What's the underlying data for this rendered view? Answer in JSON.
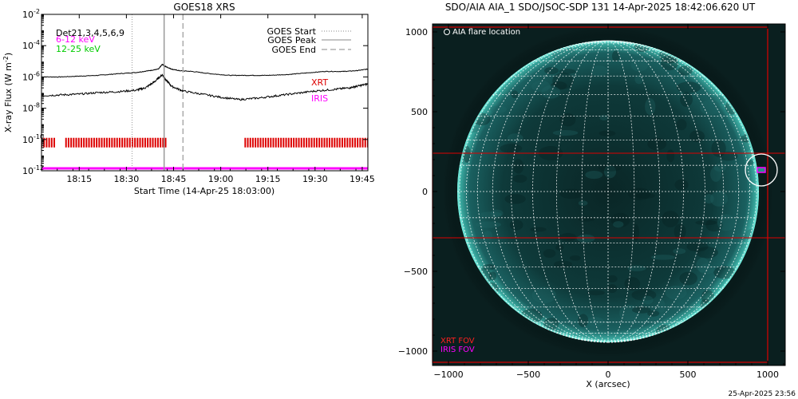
{
  "chart_data": [
    {
      "type": "line",
      "title": "GOES18 XRS",
      "xlabel": "Start Time (14-Apr-25 18:03:00)",
      "ylabel_prefix": "X-ray Flux (W m",
      "ylabel_exp": "-2",
      "ylabel_suffix": ")",
      "y_scale": "log",
      "ylim_exp": [
        -12,
        -2
      ],
      "xlim_hours": [
        18.05,
        19.78
      ],
      "x_ticks": [
        {
          "label": "18:15",
          "h": 18.25
        },
        {
          "label": "18:30",
          "h": 18.5
        },
        {
          "label": "18:45",
          "h": 18.75
        },
        {
          "label": "19:00",
          "h": 19.0
        },
        {
          "label": "19:15",
          "h": 19.25
        },
        {
          "label": "19:30",
          "h": 19.5
        },
        {
          "label": "19:45",
          "h": 19.75
        }
      ],
      "y_ticks": [
        {
          "base": "10",
          "exp": "-2",
          "e": -2
        },
        {
          "base": "10",
          "exp": "-4",
          "e": -4
        },
        {
          "base": "10",
          "exp": "-6",
          "e": -6
        },
        {
          "base": "10",
          "exp": "-8",
          "e": -8
        },
        {
          "base": "10",
          "exp": "-10",
          "e": -10
        },
        {
          "base": "10",
          "exp": "-12",
          "e": -12
        }
      ],
      "legend_left": {
        "det": "Det21,3,4,5,6,9",
        "entries": [
          {
            "label": "6-12 keV",
            "color": "#ff00ff"
          },
          {
            "label": "12-25 keV",
            "color": "#00cc00"
          }
        ]
      },
      "legend_right": [
        {
          "label": "GOES Start",
          "style": "dotted"
        },
        {
          "label": "GOES Peak",
          "style": "solid"
        },
        {
          "label": "GOES End",
          "style": "dashed"
        }
      ],
      "event_lines": {
        "start": 18.53,
        "peak": 18.7,
        "end": 18.8
      },
      "series": [
        {
          "band": "long",
          "color": "#000000",
          "x": [
            18.05,
            18.15,
            18.25,
            18.35,
            18.45,
            18.55,
            18.62,
            18.67,
            18.69,
            18.71,
            18.74,
            18.78,
            18.85,
            18.95,
            19.05,
            19.15,
            19.25,
            19.35,
            19.45,
            19.55,
            19.65,
            19.72,
            19.78
          ],
          "log_flux": [
            -6.0,
            -6.0,
            -5.95,
            -5.9,
            -5.8,
            -5.72,
            -5.6,
            -5.5,
            -5.2,
            -5.35,
            -5.5,
            -5.6,
            -5.65,
            -5.8,
            -5.9,
            -5.9,
            -5.9,
            -5.85,
            -5.75,
            -5.65,
            -5.65,
            -5.6,
            -5.5
          ]
        },
        {
          "band": "short",
          "color": "#000000",
          "x": [
            18.05,
            18.15,
            18.25,
            18.35,
            18.45,
            18.55,
            18.6,
            18.65,
            18.69,
            18.71,
            18.74,
            18.8,
            18.9,
            19.0,
            19.1,
            19.2,
            19.3,
            19.4,
            19.5,
            19.6,
            19.68,
            19.72,
            19.78
          ],
          "log_flux": [
            -7.2,
            -7.15,
            -7.1,
            -7.0,
            -6.95,
            -6.85,
            -6.7,
            -6.3,
            -5.85,
            -6.2,
            -6.6,
            -6.9,
            -7.1,
            -7.3,
            -7.45,
            -7.35,
            -7.2,
            -7.05,
            -6.9,
            -6.8,
            -6.7,
            -6.6,
            -6.45
          ]
        }
      ],
      "xrt_label": "XRT",
      "xrt_color": "#dd0000",
      "xrt_log_level": -10.2,
      "xrt_segments": [
        [
          18.05,
          18.12
        ],
        [
          18.18,
          18.72
        ],
        [
          19.13,
          19.78
        ]
      ],
      "iris_label": "IRIS",
      "iris_color": "#ff00ff",
      "iris_log_level": -11.85
    },
    {
      "type": "image",
      "title": "SDO/AIA AIA_1 SDO/JSOC-SDP 131 14-Apr-2025 18:42:06.620 UT",
      "xlabel": "X (arcsec)",
      "xlim": [
        -1100,
        1100
      ],
      "ylim": [
        -1100,
        1100
      ],
      "x_ticks": [
        {
          "label": "−1000",
          "v": -1000
        },
        {
          "label": "−500",
          "v": -500
        },
        {
          "label": "0",
          "v": 0
        },
        {
          "label": "500",
          "v": 500
        },
        {
          "label": "1000",
          "v": 1000
        }
      ],
      "y_ticks": [
        {
          "label": "1000",
          "v": 1000
        },
        {
          "label": "500",
          "v": 500
        },
        {
          "label": "0",
          "v": 0
        },
        {
          "label": "−500",
          "v": -500
        },
        {
          "label": "−1000",
          "v": -1000
        }
      ],
      "flare_legend": "AIA flare location",
      "flare_location": {
        "x": 960,
        "y": 135
      },
      "xrt_fov_label": "XRT FOV",
      "iris_fov_label": "IRIS FOV",
      "xrt_fov": {
        "x": [
          -1100,
          1000
        ],
        "y": [
          -1070,
          1030
        ]
      },
      "xrt_band": {
        "y": [
          -290,
          240
        ]
      },
      "iris_fov": {
        "x": [
          935,
          985
        ],
        "y": [
          120,
          150
        ]
      },
      "solar_radius": 945,
      "colors": {
        "disk": "#0c3434",
        "limb": "#55eedd",
        "grid": "#ffffff",
        "xrt": "#dd0000",
        "iris": "#ff00ff"
      }
    }
  ],
  "footer": {
    "timestamp": "25-Apr-2025 23:56"
  }
}
